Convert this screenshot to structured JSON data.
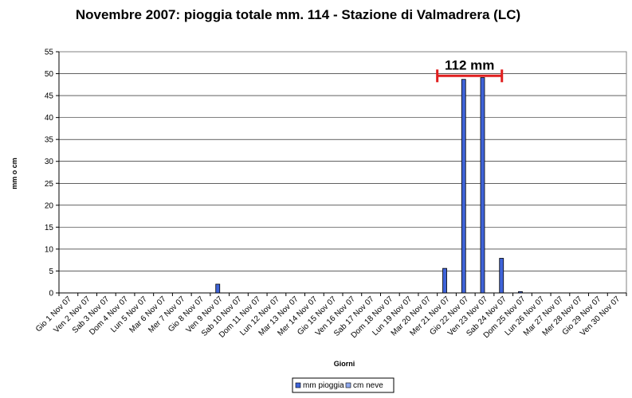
{
  "chart_data": {
    "type": "bar",
    "title": "Novembre 2007: pioggia totale mm. 114 - Stazione di Valmadrera (LC)",
    "xlabel": "Giorni",
    "ylabel": "mm o cm",
    "ylim": [
      0,
      55
    ],
    "yticks": [
      0,
      5,
      10,
      15,
      20,
      25,
      30,
      35,
      40,
      45,
      50,
      55
    ],
    "grid": true,
    "legend_position": "bottom-center",
    "categories": [
      "Gio 1 Nov 07",
      "Ven 2 Nov 07",
      "Sab 3 Nov 07",
      "Dom 4 Nov 07",
      "Lun 5 Nov 07",
      "Mar 6 Nov 07",
      "Mer 7 Nov 07",
      "Gio 8 Nov 07",
      "Ven 9 Nov 07",
      "Sab 10 Nov 07",
      "Dom 11 Nov 07",
      "Lun 12 Nov 07",
      "Mar 13 Nov 07",
      "Mer 14 Nov 07",
      "Gio 15 Nov 07",
      "Ven 16 Nov 07",
      "Sab 17 Nov 07",
      "Dom 18 Nov 07",
      "Lun 19 Nov 07",
      "Mar 20 Nov 07",
      "Mer 21 Nov 07",
      "Gio 22 Nov 07",
      "Ven 23 Nov 07",
      "Sab 24 Nov 07",
      "Dom 25 Nov 07",
      "Lun 26 Nov 07",
      "Mar 27 Nov 07",
      "Mer 28 Nov 07",
      "Gio 29 Nov 07",
      "Ven 30 Nov 07"
    ],
    "series": [
      {
        "name": "mm pioggia",
        "color": "#3f63d8",
        "values": [
          0,
          0,
          0,
          0,
          0,
          0,
          0,
          0,
          2,
          0,
          0,
          0,
          0,
          0,
          0,
          0,
          0,
          0,
          0,
          0,
          5.6,
          48.7,
          49.1,
          7.9,
          0.3,
          0,
          0,
          0,
          0,
          0
        ]
      },
      {
        "name": "cm neve",
        "color": "#8fa8ee",
        "values": [
          0,
          0,
          0,
          0,
          0,
          0,
          0,
          0,
          0,
          0,
          0,
          0,
          0,
          0,
          0,
          0,
          0,
          0,
          0,
          0,
          0,
          0,
          0,
          0,
          0,
          0,
          0,
          0,
          0,
          0
        ]
      }
    ],
    "annotation": {
      "text": "112 mm",
      "color": "#e01f1f",
      "from_category": "Mer 21 Nov 07",
      "to_category": "Sab 24 Nov 07",
      "y_value": 49.5
    }
  }
}
